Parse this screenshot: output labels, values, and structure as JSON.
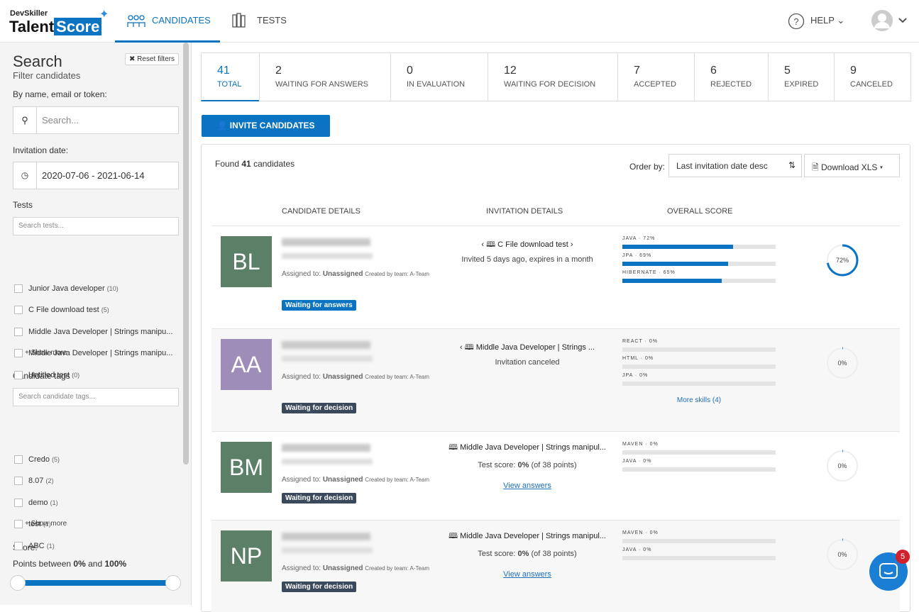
{
  "header": {
    "logo_top": "DevSkiller",
    "logo_talent": "Talent",
    "logo_score": "Score",
    "nav": [
      "CANDIDATES",
      "TESTS"
    ],
    "help": "HELP"
  },
  "sidebar": {
    "title": "Search",
    "subtitle": "Filter candidates",
    "reset": "Reset filters",
    "name_label": "By name, email or token:",
    "search_placeholder": "Search...",
    "date_label": "Invitation date:",
    "date_value": "2020-07-06 - 2021-06-14",
    "tests_label": "Tests",
    "tests_placeholder": "Search tests...",
    "tests": [
      {
        "name": "Junior Java developer",
        "count": "(10)"
      },
      {
        "name": "C File download test",
        "count": "(5)"
      },
      {
        "name": "Middle Java Developer | Strings manipu...",
        "count": null
      },
      {
        "name": "Middle Java Developer | Strings manipu...",
        "count": null
      },
      {
        "name": "Untitled test",
        "count": "(0)"
      }
    ],
    "show_more": "Show more",
    "tags_label": "Candidate tags",
    "tags_placeholder": "Search candidate tags...",
    "tags": [
      {
        "name": "Credo",
        "count": "(5)"
      },
      {
        "name": "8.07",
        "count": "(2)"
      },
      {
        "name": "demo",
        "count": "(1)"
      },
      {
        "name": "test",
        "count": "(1)"
      },
      {
        "name": "ABC",
        "count": "(1)"
      }
    ],
    "score_label": "Score:",
    "points": {
      "prefix": "Points between",
      "min": "0%",
      "middle": "and",
      "max": "100%"
    }
  },
  "status_tabs": [
    {
      "count": 41,
      "label": "TOTAL"
    },
    {
      "count": 2,
      "label": "WAITING FOR ANSWERS"
    },
    {
      "count": 0,
      "label": "IN EVALUATION"
    },
    {
      "count": 12,
      "label": "WAITING FOR DECISION"
    },
    {
      "count": 7,
      "label": "ACCEPTED"
    },
    {
      "count": 6,
      "label": "REJECTED"
    },
    {
      "count": 5,
      "label": "EXPIRED"
    },
    {
      "count": 9,
      "label": "CANCELED"
    }
  ],
  "invite_button": "INVITE CANDIDATES",
  "found": {
    "prefix": "Found",
    "count": 41,
    "suffix": "candidates"
  },
  "order_label": "Order by:",
  "order_value": "Last invitation date desc",
  "download": "Download XLS",
  "columns": [
    "CANDIDATE DETAILS",
    "INVITATION DETAILS",
    "OVERALL SCORE"
  ],
  "candidates": [
    {
      "initials": "BL",
      "avatar_color": "#5c7f68",
      "assigned_label": "Assigned to:",
      "assigned": "Unassigned",
      "created": "Created by team: A-Team",
      "status": "Waiting for answers",
      "status_color": "#0a73c2",
      "test": "C File download test",
      "note": "Invited 5 days ago, expires in a month",
      "skills": [
        {
          "label": "JAVA · 72%",
          "value": 72
        },
        {
          "label": "JPA · 69%",
          "value": 69
        },
        {
          "label": "HIBERNATE · 65%",
          "value": 65
        }
      ],
      "score": 72,
      "score_label": "72%"
    },
    {
      "initials": "AA",
      "avatar_color": "#9e8db8",
      "assigned_label": "Assigned to:",
      "assigned": "Unassigned",
      "created": "Created by team: A-Team",
      "status": "Waiting for decision",
      "status_color": "#3a4a5c",
      "test": "Middle Java Developer | Strings ...",
      "note": "Invitation canceled",
      "skills": [
        {
          "label": "REACT · 0%",
          "value": 0
        },
        {
          "label": "HTML · 0%",
          "value": 0
        },
        {
          "label": "JPA · 0%",
          "value": 0
        }
      ],
      "more_skills": "More skills (4)",
      "score": 0,
      "score_label": "0%"
    },
    {
      "initials": "BM",
      "avatar_color": "#5c7f68",
      "assigned_label": "Assigned to:",
      "assigned": "Unassigned",
      "created": "Created by team: A-Team",
      "status": "Waiting for decision",
      "status_color": "#3a4a5c",
      "test": "Middle Java Developer | Strings manipul...",
      "test_score": {
        "prefix": "Test score:",
        "value": "0%",
        "suffix": "(of 38 points)"
      },
      "view": "View answers",
      "skills": [
        {
          "label": "MAVEN · 0%",
          "value": 0
        },
        {
          "label": "JAVA · 0%",
          "value": 0
        }
      ],
      "score": 0,
      "score_label": "0%"
    },
    {
      "initials": "NP",
      "avatar_color": "#5c7f68",
      "assigned_label": "Assigned to:",
      "assigned": "Unassigned",
      "created": "Created by team: A-Team",
      "status": "Waiting for decision",
      "status_color": "#3a4a5c",
      "test": "Middle Java Developer | Strings manipul...",
      "test_score": {
        "prefix": "Test score:",
        "value": "0%",
        "suffix": "(of 38 points)"
      },
      "view": "View answers",
      "skills": [
        {
          "label": "MAVEN · 0%",
          "value": 0
        },
        {
          "label": "JAVA · 0%",
          "value": 0
        }
      ],
      "score": 0,
      "score_label": "0%"
    }
  ],
  "chat_badge": 5
}
